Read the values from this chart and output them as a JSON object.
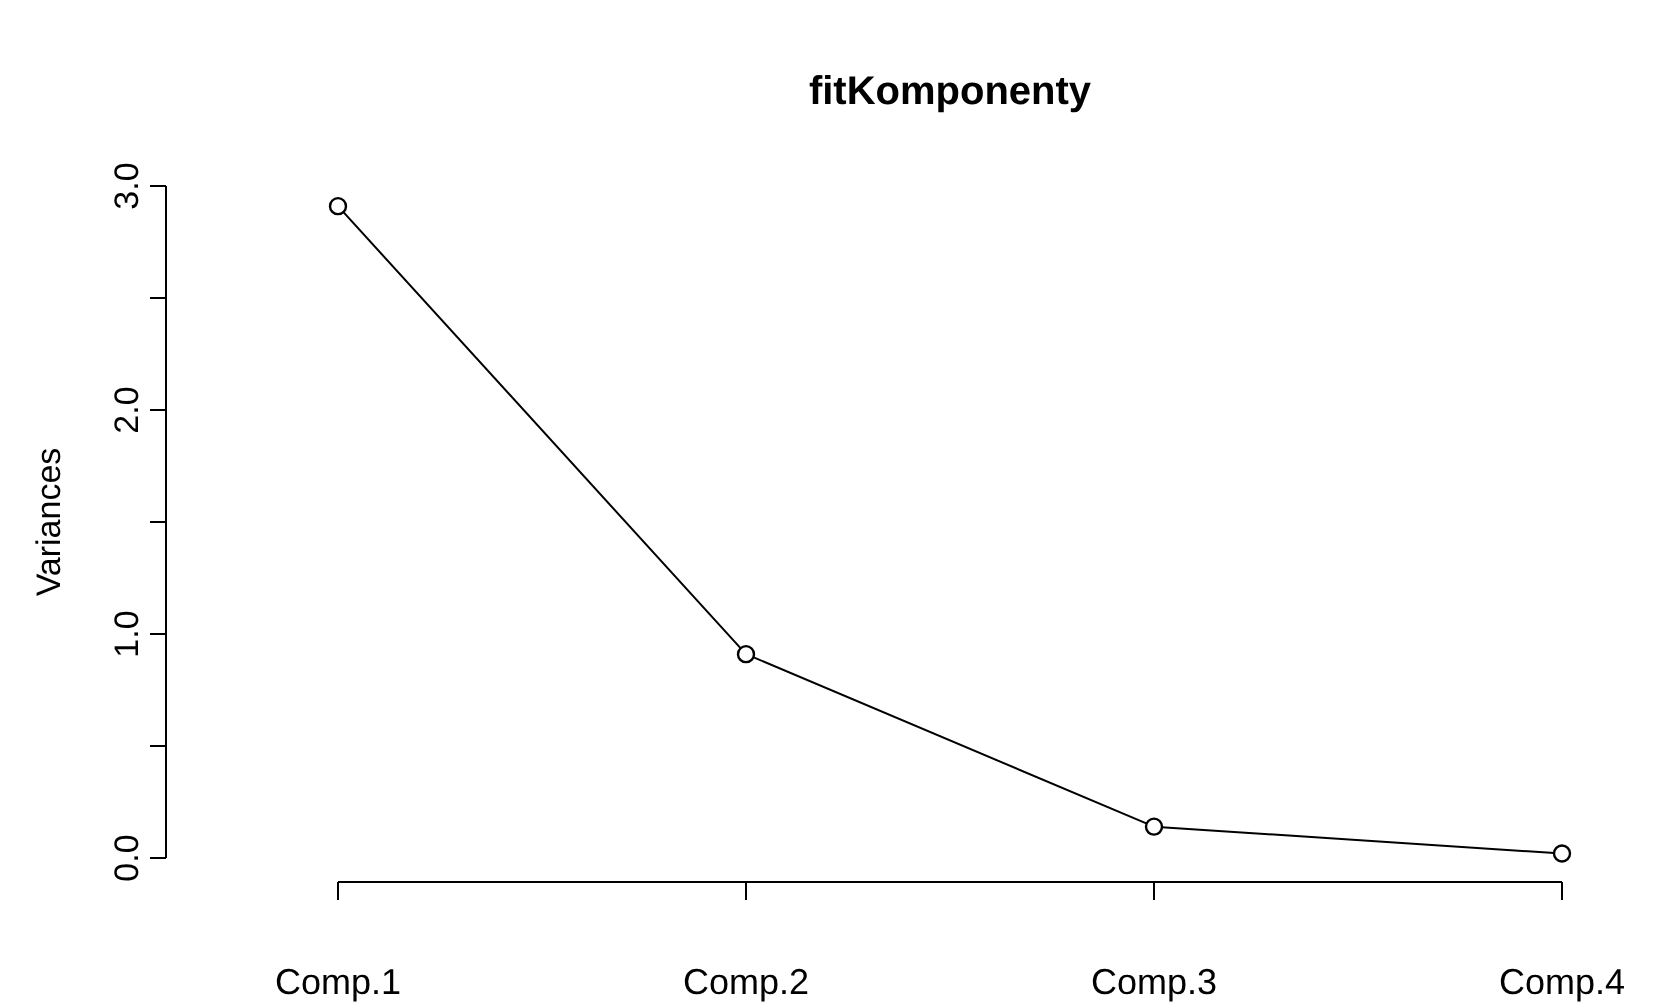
{
  "chart_data": {
    "type": "line",
    "title": "fitKomponenty",
    "ylabel": "Variances",
    "categories": [
      "Comp.1",
      "Comp.2",
      "Comp.3",
      "Comp.4"
    ],
    "series": [
      {
        "color": "#000000",
        "values": [
          2.91,
          0.91,
          0.14,
          0.02
        ]
      }
    ],
    "ylim": [
      0,
      3
    ],
    "yticks": [
      {
        "value": 0,
        "label": "0.0"
      },
      {
        "value": 0.5,
        "label": null
      },
      {
        "value": 1,
        "label": "1.0"
      },
      {
        "value": 1.5,
        "label": null
      },
      {
        "value": 2,
        "label": "2.0"
      },
      {
        "value": 2.5,
        "label": null
      },
      {
        "value": 3,
        "label": "3.0"
      }
    ],
    "marker": "circle",
    "line_style": "solid"
  }
}
